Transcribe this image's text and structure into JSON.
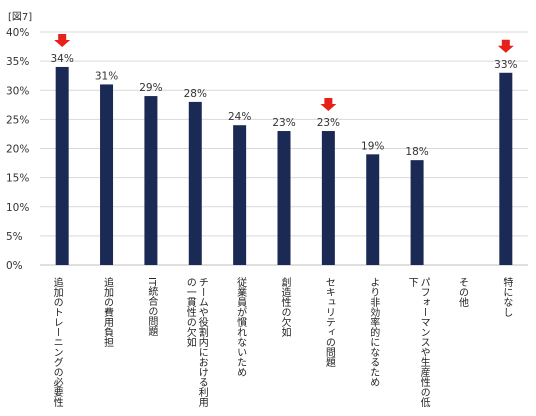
{
  "figure_label": "[図7]",
  "chart_data": {
    "type": "bar",
    "categories": [
      "追加のトレーニングの必要性",
      "追加の費用負担",
      "IT統合の問題",
      "チームや役割内における利用の一貫性の欠如",
      "従業員が慣れないため",
      "創造性の欠如",
      "セキュリティの問題",
      "より非効率的になるため",
      "パフォーマンスや生産性の低下",
      "その他",
      "特になし"
    ],
    "values": [
      34,
      31,
      29,
      28,
      24,
      23,
      23,
      19,
      18,
      0,
      33
    ],
    "data_labels": [
      "34%",
      "31%",
      "29%",
      "28%",
      "24%",
      "23%",
      "23%",
      "19%",
      "18%",
      "",
      "33%"
    ],
    "highlighted": [
      0,
      6,
      10
    ],
    "ylim": [
      0,
      40
    ],
    "yticks": [
      "0%",
      "5%",
      "10%",
      "15%",
      "20%",
      "25%",
      "30%",
      "35%",
      "40%"
    ],
    "grid": true,
    "bar_color": "#1b2a55",
    "arrow_color": "#e8201a",
    "grid_color": "#d9d9d9"
  }
}
